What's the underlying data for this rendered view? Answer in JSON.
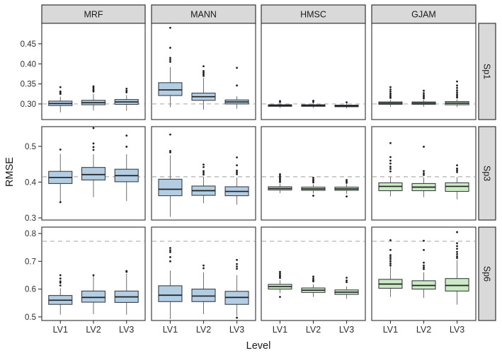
{
  "chart_data": {
    "type": "boxplot",
    "title": "",
    "xlabel": "Level",
    "ylabel": "RMSE",
    "legend": "none",
    "grid": "off",
    "col_facets": [
      "MRF",
      "MANN",
      "HMSC",
      "GJAM"
    ],
    "categories": [
      "LV1",
      "LV2",
      "LV3"
    ],
    "colors": {
      "fill_blue": "#B3CDE3",
      "fill_green": "#CCEBC5",
      "box_border": "#3a3f45",
      "median": "#1f1f1f",
      "whisker": "#6e6e6e",
      "outlier": "#1f1f1f",
      "strip_bg": "#d9d9d9",
      "strip_border": "#333333",
      "panel_border": "#404040",
      "dashed_line": "#b8b8b8",
      "tick_text": "#2e2e2e"
    },
    "fill_by_model": {
      "MRF": "#B3CDE3",
      "MANN": "#B3CDE3",
      "HMSC": "#CCEBC5",
      "GJAM": "#CCEBC5"
    },
    "row_facets": [
      {
        "label": "Sp1",
        "ylim": [
          0.261,
          0.501
        ],
        "yticks": [
          0.3,
          0.35,
          0.4,
          0.45
        ],
        "ytick_labels": [
          "0.30",
          "0.35",
          "0.40",
          "0.45"
        ],
        "hline": 0.3
      },
      {
        "label": "Sp3",
        "ylim": [
          0.294,
          0.555
        ],
        "yticks": [
          0.3,
          0.4,
          0.5
        ],
        "ytick_labels": [
          "0.3",
          "0.4",
          "0.5"
        ],
        "hline": 0.415
      },
      {
        "label": "Sp6",
        "ylim": [
          0.487,
          0.823
        ],
        "yticks": [
          0.5,
          0.6,
          0.7,
          0.8
        ],
        "ytick_labels": [
          "0.5",
          "0.6",
          "0.7",
          "0.8"
        ],
        "hline": 0.772
      }
    ],
    "panels": {
      "Sp1": {
        "MRF": [
          {
            "lo": 0.279,
            "q1": 0.296,
            "med": 0.301,
            "q3": 0.307,
            "hi": 0.318,
            "out": [
              0.325,
              0.328,
              0.331,
              0.342
            ]
          },
          {
            "lo": 0.284,
            "q1": 0.298,
            "med": 0.303,
            "q3": 0.309,
            "hi": 0.325,
            "out": [
              0.331,
              0.334,
              0.337,
              0.341,
              0.344
            ]
          },
          {
            "lo": 0.283,
            "q1": 0.299,
            "med": 0.305,
            "q3": 0.311,
            "hi": 0.322,
            "out": [
              0.329,
              0.333,
              0.338
            ]
          }
        ],
        "MANN": [
          {
            "lo": 0.292,
            "q1": 0.321,
            "med": 0.335,
            "q3": 0.353,
            "hi": 0.392,
            "out": [
              0.405,
              0.41,
              0.415,
              0.44,
              0.49
            ]
          },
          {
            "lo": 0.286,
            "q1": 0.309,
            "med": 0.318,
            "q3": 0.327,
            "hi": 0.365,
            "out": [
              0.37,
              0.374,
              0.378,
              0.382,
              0.394
            ]
          },
          {
            "lo": 0.288,
            "q1": 0.3,
            "med": 0.305,
            "q3": 0.31,
            "hi": 0.319,
            "out": [
              0.346,
              0.39
            ]
          }
        ],
        "HMSC": [
          {
            "lo": 0.29,
            "q1": 0.294,
            "med": 0.296,
            "q3": 0.298,
            "hi": 0.302,
            "out": [
              0.305,
              0.307
            ]
          },
          {
            "lo": 0.29,
            "q1": 0.294,
            "med": 0.296,
            "q3": 0.298,
            "hi": 0.302,
            "out": [
              0.305,
              0.308
            ]
          },
          {
            "lo": 0.289,
            "q1": 0.293,
            "med": 0.295,
            "q3": 0.297,
            "hi": 0.301,
            "out": [
              0.304
            ]
          }
        ],
        "GJAM": [
          {
            "lo": 0.293,
            "q1": 0.299,
            "med": 0.302,
            "q3": 0.305,
            "hi": 0.31,
            "out": [
              0.315,
              0.318,
              0.322,
              0.326,
              0.331,
              0.336,
              0.342
            ]
          },
          {
            "lo": 0.293,
            "q1": 0.299,
            "med": 0.302,
            "q3": 0.305,
            "hi": 0.31,
            "out": [
              0.314,
              0.318,
              0.322,
              0.327,
              0.333
            ]
          },
          {
            "lo": 0.292,
            "q1": 0.298,
            "med": 0.302,
            "q3": 0.306,
            "hi": 0.311,
            "out": [
              0.316,
              0.32,
              0.324,
              0.329,
              0.334,
              0.34,
              0.346,
              0.356
            ]
          }
        ]
      },
      "Sp3": {
        "MRF": [
          {
            "lo": 0.346,
            "q1": 0.396,
            "med": 0.413,
            "q3": 0.43,
            "hi": 0.479,
            "out": [
              0.344,
              0.491
            ]
          },
          {
            "lo": 0.358,
            "q1": 0.406,
            "med": 0.421,
            "q3": 0.441,
            "hi": 0.478,
            "out": [
              0.49,
              0.498,
              0.508,
              0.551
            ]
          },
          {
            "lo": 0.347,
            "q1": 0.401,
            "med": 0.418,
            "q3": 0.436,
            "hi": 0.478,
            "out": [
              0.499,
              0.53
            ]
          }
        ],
        "MANN": [
          {
            "lo": 0.303,
            "q1": 0.362,
            "med": 0.38,
            "q3": 0.408,
            "hi": 0.475,
            "out": [
              0.483,
              0.487,
              0.533
            ]
          },
          {
            "lo": 0.341,
            "q1": 0.363,
            "med": 0.376,
            "q3": 0.389,
            "hi": 0.415,
            "out": [
              0.421,
              0.426,
              0.431,
              0.442,
              0.449
            ]
          },
          {
            "lo": 0.337,
            "q1": 0.362,
            "med": 0.374,
            "q3": 0.387,
            "hi": 0.413,
            "out": [
              0.422,
              0.427,
              0.432,
              0.447,
              0.469
            ]
          }
        ],
        "HMSC": [
          {
            "lo": 0.369,
            "q1": 0.378,
            "med": 0.382,
            "q3": 0.387,
            "hi": 0.395,
            "out": [
              0.4,
              0.404,
              0.408,
              0.412,
              0.417,
              0.422
            ]
          },
          {
            "lo": 0.368,
            "q1": 0.377,
            "med": 0.381,
            "q3": 0.386,
            "hi": 0.394,
            "out": [
              0.362,
              0.399,
              0.403,
              0.407,
              0.412
            ]
          },
          {
            "lo": 0.367,
            "q1": 0.377,
            "med": 0.381,
            "q3": 0.386,
            "hi": 0.394,
            "out": [
              0.36,
              0.398,
              0.402,
              0.406
            ]
          }
        ],
        "GJAM": [
          {
            "lo": 0.36,
            "q1": 0.376,
            "med": 0.388,
            "q3": 0.398,
            "hi": 0.415,
            "out": [
              0.43,
              0.437,
              0.443,
              0.452,
              0.46,
              0.47,
              0.509
            ]
          },
          {
            "lo": 0.358,
            "q1": 0.376,
            "med": 0.386,
            "q3": 0.396,
            "hi": 0.413,
            "out": [
              0.42,
              0.425,
              0.431,
              0.499
            ]
          },
          {
            "lo": 0.352,
            "q1": 0.374,
            "med": 0.388,
            "q3": 0.398,
            "hi": 0.414,
            "out": [
              0.428,
              0.433,
              0.438,
              0.447
            ]
          }
        ]
      },
      "Sp6": {
        "MRF": [
          {
            "lo": 0.508,
            "q1": 0.545,
            "med": 0.56,
            "q3": 0.577,
            "hi": 0.603,
            "out": [
              0.613,
              0.623,
              0.628,
              0.638,
              0.65
            ]
          },
          {
            "lo": 0.51,
            "q1": 0.553,
            "med": 0.57,
            "q3": 0.593,
            "hi": 0.648,
            "out": [
              0.65
            ]
          },
          {
            "lo": 0.508,
            "q1": 0.552,
            "med": 0.572,
            "q3": 0.593,
            "hi": 0.655,
            "out": [
              0.662,
              0.665
            ]
          }
        ],
        "MANN": [
          {
            "lo": 0.492,
            "q1": 0.555,
            "med": 0.578,
            "q3": 0.612,
            "hi": 0.667,
            "out": [
              0.7,
              0.715,
              0.733,
              0.74,
              0.748
            ]
          },
          {
            "lo": 0.51,
            "q1": 0.555,
            "med": 0.575,
            "q3": 0.6,
            "hi": 0.66,
            "out": [
              0.675,
              0.685
            ]
          },
          {
            "lo": 0.503,
            "q1": 0.545,
            "med": 0.57,
            "q3": 0.592,
            "hi": 0.65,
            "out": [
              0.497,
              0.673,
              0.681,
              0.69,
              0.705
            ]
          }
        ],
        "HMSC": [
          {
            "lo": 0.585,
            "q1": 0.6,
            "med": 0.609,
            "q3": 0.617,
            "hi": 0.632,
            "out": [
              0.572,
              0.64,
              0.645,
              0.65,
              0.656,
              0.662
            ]
          },
          {
            "lo": 0.572,
            "q1": 0.588,
            "med": 0.596,
            "q3": 0.604,
            "hi": 0.617,
            "out": [
              0.628,
              0.632,
              0.638,
              0.645
            ]
          },
          {
            "lo": 0.565,
            "q1": 0.581,
            "med": 0.589,
            "q3": 0.597,
            "hi": 0.61,
            "out": [
              0.625,
              0.631,
              0.641
            ]
          }
        ],
        "GJAM": [
          {
            "lo": 0.572,
            "q1": 0.603,
            "med": 0.618,
            "q3": 0.635,
            "hi": 0.68,
            "out": [
              0.685,
              0.692,
              0.7,
              0.708,
              0.715,
              0.722,
              0.741,
              0.776
            ]
          },
          {
            "lo": 0.568,
            "q1": 0.6,
            "med": 0.613,
            "q3": 0.63,
            "hi": 0.66,
            "out": [
              0.672,
              0.678,
              0.685,
              0.695,
              0.741,
              0.774
            ]
          },
          {
            "lo": 0.544,
            "q1": 0.593,
            "med": 0.613,
            "q3": 0.638,
            "hi": 0.705,
            "out": [
              0.712,
              0.718,
              0.726,
              0.734,
              0.745,
              0.755,
              0.765,
              0.805
            ]
          }
        ]
      }
    }
  }
}
